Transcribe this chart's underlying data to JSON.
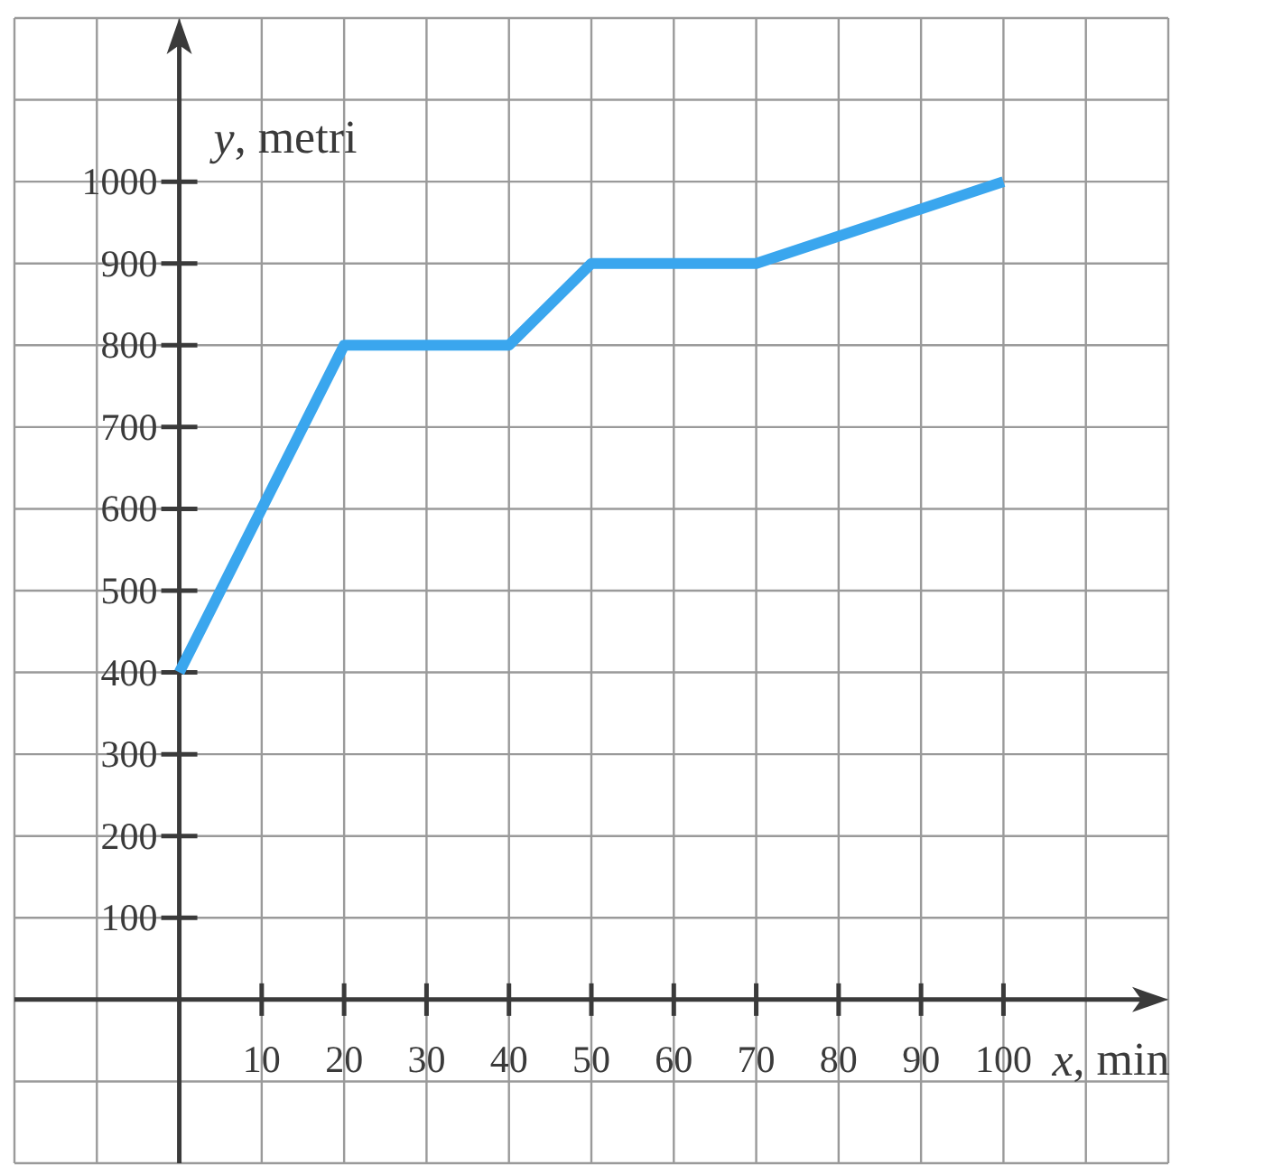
{
  "chart_data": {
    "type": "line",
    "xlabel": "x, min",
    "ylabel": "y, metri",
    "x": [
      0,
      20,
      40,
      50,
      70,
      100
    ],
    "values": [
      400,
      800,
      800,
      900,
      900,
      1000
    ],
    "color": "#3aa6ee",
    "xlim": [
      -20,
      120
    ],
    "ylim": [
      -200,
      1200
    ],
    "xticks": [
      10,
      20,
      30,
      40,
      50,
      60,
      70,
      80,
      90,
      100
    ],
    "yticks": [
      100,
      200,
      300,
      400,
      500,
      600,
      700,
      800,
      900,
      1000
    ],
    "grid": true
  }
}
